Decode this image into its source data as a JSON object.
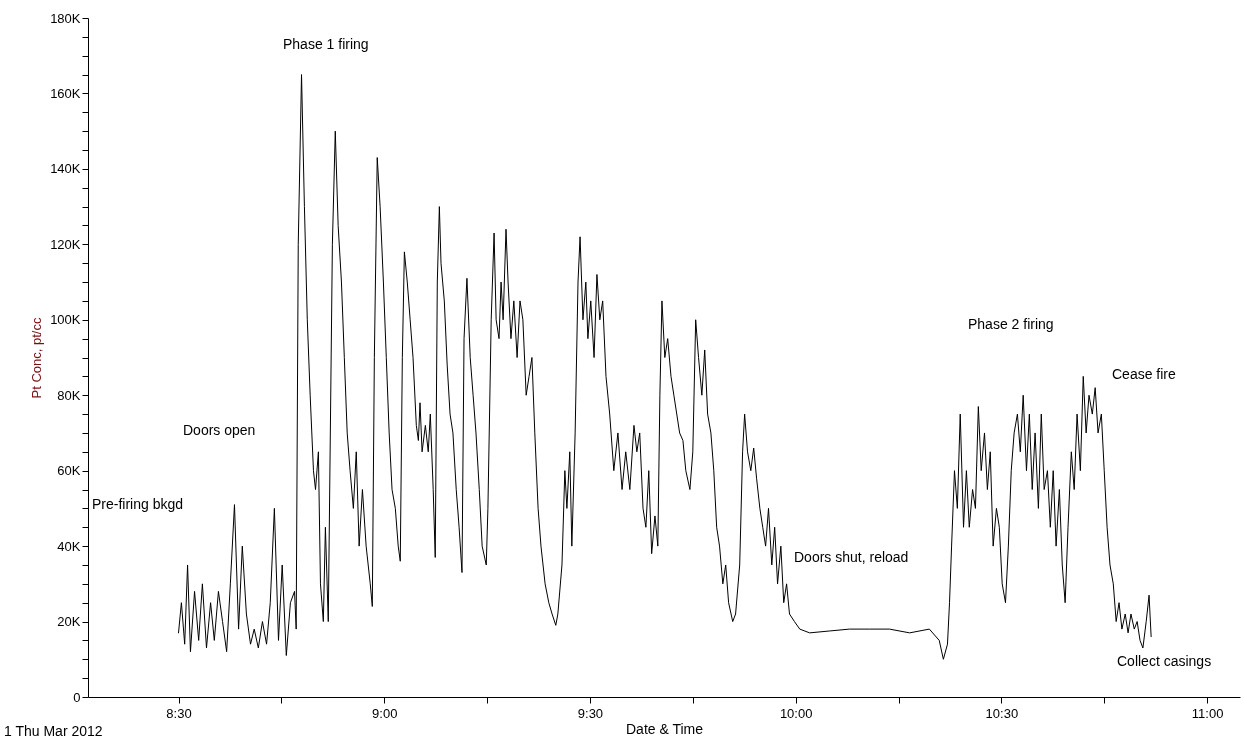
{
  "chart_data": {
    "type": "line",
    "xlabel": "Date & Time",
    "ylabel": "Pt Conc, pt/cc",
    "xlim": [
      8.28,
      11.08
    ],
    "ylim": [
      0,
      180000
    ],
    "xticks": [
      {
        "value": 8.5,
        "label": "8:30"
      },
      {
        "value": 8.75,
        "label": null
      },
      {
        "value": 9,
        "label": "9:00"
      },
      {
        "value": 9.25,
        "label": null
      },
      {
        "value": 9.5,
        "label": "9:30"
      },
      {
        "value": 9.75,
        "label": null
      },
      {
        "value": 10,
        "label": "10:00"
      },
      {
        "value": 10.25,
        "label": null
      },
      {
        "value": 10.5,
        "label": "10:30"
      },
      {
        "value": 10.75,
        "label": null
      },
      {
        "value": 11,
        "label": "11:00"
      }
    ],
    "yticks": [
      0,
      {
        "value": 5000,
        "label": null
      },
      {
        "value": 10000,
        "label": null
      },
      {
        "value": 15000,
        "label": null
      },
      {
        "value": 20000,
        "label": "20K"
      },
      {
        "value": 25000,
        "label": null
      },
      {
        "value": 30000,
        "label": null
      },
      {
        "value": 35000,
        "label": null
      },
      {
        "value": 40000,
        "label": "40K"
      },
      {
        "value": 45000,
        "label": null
      },
      {
        "value": 50000,
        "label": null
      },
      {
        "value": 55000,
        "label": null
      },
      {
        "value": 60000,
        "label": "60K"
      },
      {
        "value": 65000,
        "label": null
      },
      {
        "value": 70000,
        "label": null
      },
      {
        "value": 75000,
        "label": null
      },
      {
        "value": 80000,
        "label": "80K"
      },
      {
        "value": 85000,
        "label": null
      },
      {
        "value": 90000,
        "label": null
      },
      {
        "value": 95000,
        "label": null
      },
      {
        "value": 100000,
        "label": "100K"
      },
      {
        "value": 105000,
        "label": null
      },
      {
        "value": 110000,
        "label": null
      },
      {
        "value": 115000,
        "label": null
      },
      {
        "value": 120000,
        "label": "120K"
      },
      {
        "value": 125000,
        "label": null
      },
      {
        "value": 130000,
        "label": null
      },
      {
        "value": 135000,
        "label": null
      },
      {
        "value": 140000,
        "label": "140K"
      },
      {
        "value": 145000,
        "label": null
      },
      {
        "value": 150000,
        "label": null
      },
      {
        "value": 155000,
        "label": null
      },
      {
        "value": 160000,
        "label": "160K"
      },
      {
        "value": 165000,
        "label": null
      },
      {
        "value": 170000,
        "label": null
      },
      {
        "value": 175000,
        "label": null
      },
      {
        "value": 180000,
        "label": "180K"
      }
    ],
    "x": [
      8.5,
      8.507,
      8.515,
      8.522,
      8.529,
      8.539,
      8.549,
      8.558,
      8.568,
      8.578,
      8.587,
      8.597,
      8.607,
      8.617,
      8.626,
      8.636,
      8.646,
      8.655,
      8.665,
      8.675,
      8.684,
      8.694,
      8.704,
      8.714,
      8.723,
      8.733,
      8.743,
      8.752,
      8.762,
      8.772,
      8.782,
      8.786,
      8.791,
      8.799,
      8.806,
      8.813,
      8.82,
      8.828,
      8.833,
      8.84,
      8.845,
      8.852,
      8.857,
      8.864,
      8.874,
      8.881,
      8.888,
      8.896,
      8.903,
      8.91,
      8.917,
      8.925,
      8.932,
      8.939,
      8.947,
      8.956,
      8.966,
      8.971,
      8.976,
      8.983,
      8.99,
      8.998,
      9.005,
      9.012,
      9.019,
      9.027,
      9.034,
      9.039,
      9.044,
      9.049,
      9.056,
      9.063,
      9.07,
      9.078,
      9.083,
      9.087,
      9.092,
      9.1,
      9.107,
      9.112,
      9.119,
      9.124,
      9.129,
      9.134,
      9.138,
      9.146,
      9.153,
      9.16,
      9.167,
      9.175,
      9.182,
      9.189,
      9.194,
      9.201,
      9.209,
      9.216,
      9.223,
      9.231,
      9.238,
      9.248,
      9.252,
      9.26,
      9.267,
      9.272,
      9.279,
      9.284,
      9.289,
      9.296,
      9.301,
      9.308,
      9.315,
      9.323,
      9.33,
      9.337,
      9.345,
      9.352,
      9.359,
      9.366,
      9.374,
      9.381,
      9.391,
      9.4,
      9.408,
      9.417,
      9.422,
      9.432,
      9.439,
      9.444,
      9.451,
      9.456,
      9.464,
      9.471,
      9.476,
      9.483,
      9.49,
      9.495,
      9.502,
      9.51,
      9.517,
      9.524,
      9.531,
      9.539,
      9.548,
      9.558,
      9.568,
      9.578,
      9.587,
      9.597,
      9.607,
      9.614,
      9.621,
      9.629,
      9.636,
      9.643,
      9.65,
      9.658,
      9.665,
      9.67,
      9.675,
      9.682,
      9.689,
      9.697,
      9.704,
      9.711,
      9.718,
      9.726,
      9.733,
      9.743,
      9.75,
      9.757,
      9.764,
      9.772,
      9.779,
      9.786,
      9.794,
      9.801,
      9.808,
      9.815,
      9.823,
      9.83,
      9.837,
      9.847,
      9.854,
      9.864,
      9.871,
      9.876,
      9.883,
      9.891,
      9.898,
      9.905,
      9.913,
      9.92,
      9.927,
      9.934,
      9.942,
      9.949,
      9.956,
      9.964,
      9.971,
      9.978,
      9.985,
      9.997,
      10.01,
      10.034,
      10.082,
      10.131,
      10.18,
      10.228,
      10.277,
      10.325,
      10.349,
      10.359,
      10.369,
      10.374,
      10.379,
      10.386,
      10.393,
      10.4,
      10.408,
      10.415,
      10.422,
      10.43,
      10.437,
      10.444,
      10.451,
      10.459,
      10.466,
      10.473,
      10.48,
      10.488,
      10.495,
      10.502,
      10.51,
      10.517,
      10.524,
      10.531,
      10.539,
      10.546,
      10.553,
      10.561,
      10.568,
      10.575,
      10.582,
      10.59,
      10.597,
      10.604,
      10.612,
      10.619,
      10.626,
      10.633,
      10.641,
      10.648,
      10.655,
      10.662,
      10.67,
      10.677,
      10.684,
      10.692,
      10.699,
      10.706,
      10.713,
      10.721,
      10.728,
      10.735,
      10.743,
      10.75,
      10.757,
      10.764,
      10.772,
      10.779,
      10.786,
      10.793,
      10.801,
      10.808,
      10.815,
      10.823,
      10.83,
      10.837,
      10.844,
      10.852,
      10.859,
      10.864
    ],
    "series": [
      {
        "color": "#000000",
        "values": [
          17000,
          25000,
          14000,
          35000,
          12000,
          28000,
          15000,
          30000,
          13000,
          25000,
          15000,
          28000,
          20000,
          12000,
          30000,
          51000,
          18000,
          40000,
          22000,
          14000,
          18000,
          13000,
          20000,
          14000,
          25000,
          50000,
          15000,
          35000,
          11000,
          25000,
          28000,
          18000,
          120000,
          165000,
          130000,
          100000,
          80000,
          60000,
          55000,
          65000,
          30000,
          20000,
          45000,
          20000,
          120000,
          150000,
          125000,
          110000,
          90000,
          70000,
          60000,
          50000,
          65000,
          40000,
          55000,
          40000,
          30000,
          24000,
          90000,
          143000,
          130000,
          110000,
          90000,
          70000,
          55000,
          50000,
          40000,
          36000,
          90000,
          118000,
          110000,
          100000,
          90000,
          72000,
          68000,
          78000,
          65000,
          72000,
          65000,
          75000,
          55000,
          37000,
          110000,
          130000,
          115000,
          105000,
          88000,
          75000,
          70000,
          55000,
          45000,
          33000,
          95000,
          111000,
          90000,
          80000,
          70000,
          55000,
          40000,
          35000,
          50000,
          100000,
          123000,
          100000,
          95000,
          110000,
          100000,
          124000,
          110000,
          95000,
          105000,
          90000,
          105000,
          100000,
          80000,
          85000,
          90000,
          70000,
          50000,
          40000,
          30000,
          25000,
          22000,
          19000,
          22000,
          35000,
          60000,
          50000,
          65000,
          40000,
          70000,
          110000,
          122000,
          100000,
          110000,
          95000,
          105000,
          90000,
          112000,
          100000,
          105000,
          85000,
          75000,
          60000,
          70000,
          55000,
          65000,
          55000,
          72000,
          65000,
          70000,
          50000,
          45000,
          60000,
          38000,
          48000,
          40000,
          80000,
          105000,
          90000,
          95000,
          85000,
          80000,
          75000,
          70000,
          68000,
          60000,
          55000,
          65000,
          100000,
          90000,
          80000,
          92000,
          75000,
          70000,
          60000,
          45000,
          40000,
          30000,
          35000,
          25000,
          20000,
          22000,
          35000,
          65000,
          75000,
          65000,
          60000,
          66000,
          58000,
          50000,
          45000,
          40000,
          50000,
          35000,
          45000,
          30000,
          40000,
          25000,
          30000,
          22000,
          20000,
          18000,
          17000,
          17500,
          18000,
          18000,
          18000,
          17000,
          18000,
          15000,
          10000,
          14000,
          25000,
          40000,
          60000,
          50000,
          75000,
          45000,
          60000,
          45000,
          55000,
          50000,
          77000,
          60000,
          70000,
          55000,
          65000,
          40000,
          50000,
          45000,
          30000,
          25000,
          40000,
          60000,
          70000,
          75000,
          65000,
          80000,
          60000,
          75000,
          55000,
          70000,
          50000,
          75000,
          55000,
          60000,
          45000,
          60000,
          40000,
          55000,
          35000,
          25000,
          45000,
          65000,
          55000,
          75000,
          60000,
          85000,
          70000,
          80000,
          75000,
          82000,
          70000,
          75000,
          60000,
          45000,
          35000,
          30000,
          20000,
          25000,
          18000,
          22000,
          17000,
          22000,
          18000,
          20000,
          15000,
          13000,
          20000,
          27000,
          16000
        ]
      }
    ],
    "annotations": [
      "Pre-firing bkgd",
      "Doors open",
      "Phase 1 firing",
      "Doors shut, reload",
      "Phase 2 firing",
      "Cease fire",
      "Collect casings",
      "1 Thu Mar 2012"
    ]
  }
}
